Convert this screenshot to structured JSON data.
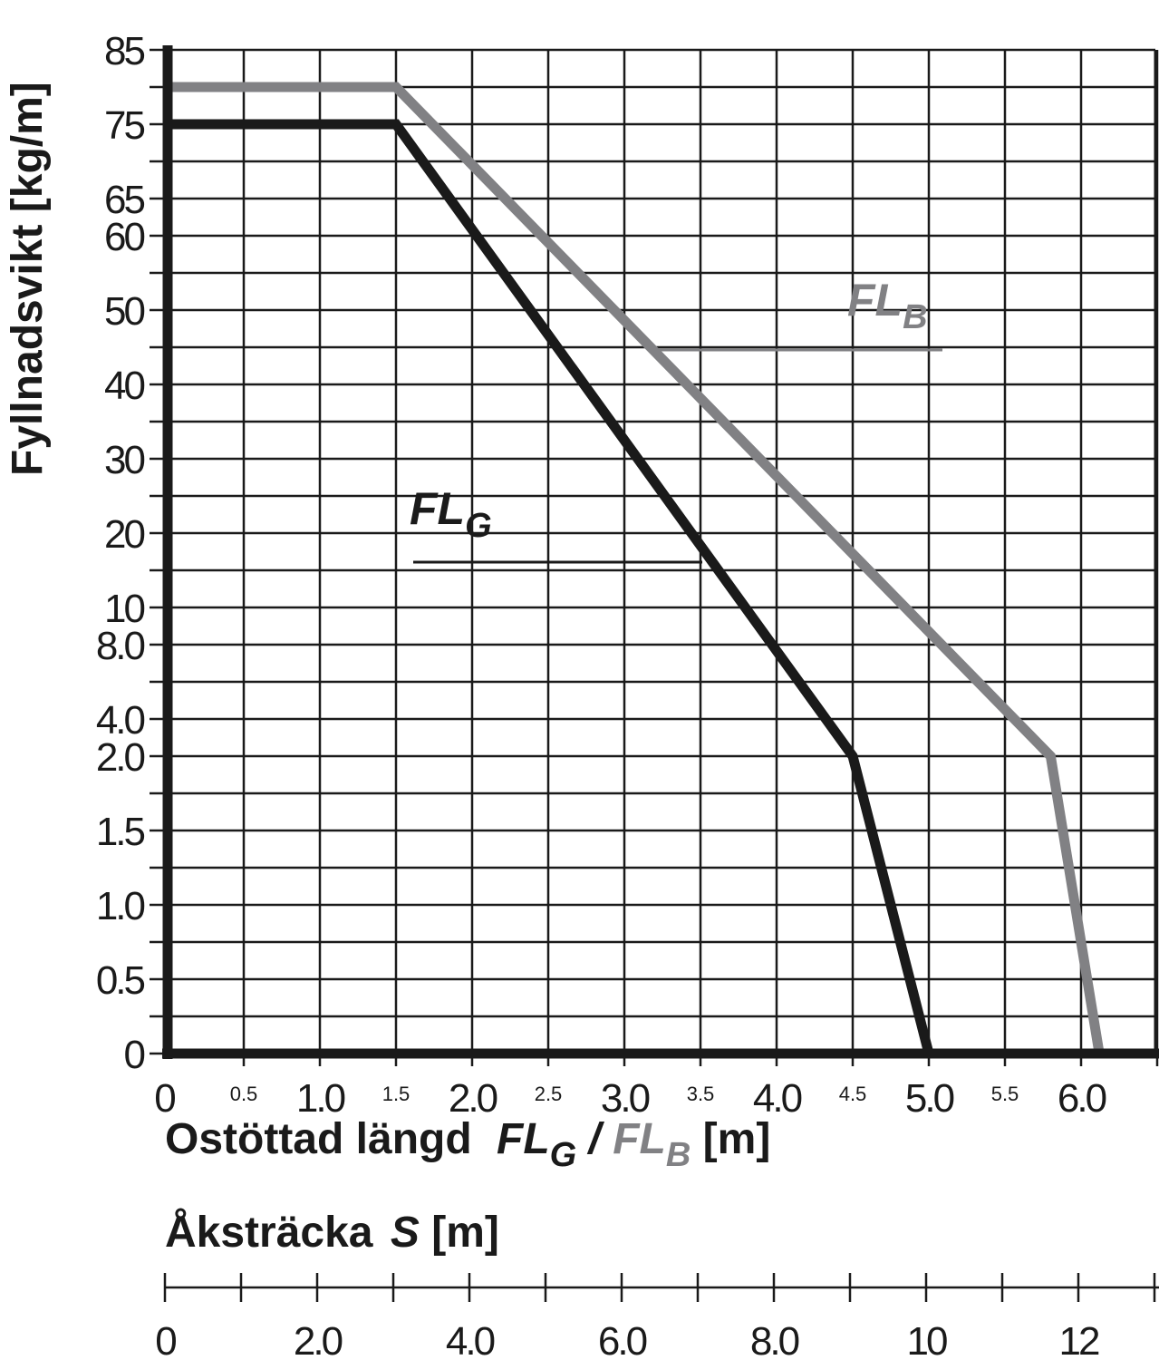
{
  "chart_data": {
    "type": "line",
    "ylabel": "Fyllnadsvikt [kg/m]",
    "xlabel": {
      "prefix": "Ostöttad längd",
      "series_g": "FL",
      "series_g_sub": "G",
      "sep": "/",
      "series_b": "FL",
      "series_b_sub": "B",
      "unit": "[m]"
    },
    "x2label": {
      "text": "Åksträcka",
      "var": "S",
      "unit": "[m]"
    },
    "xlim": [
      0,
      6.5
    ],
    "x_ticks_major": [
      "0",
      "1.0",
      "2.0",
      "3.0",
      "4.0",
      "5.0",
      "6.0"
    ],
    "x_ticks_minor": [
      "0.5",
      "1.5",
      "2.5",
      "3.5",
      "4.5",
      "5.5"
    ],
    "y_scale": "non-uniform (equal spacing between labeled ticks)",
    "y_ticks": [
      "0",
      "0.5",
      "1.0",
      "1.5",
      "2.0",
      "4.0",
      "8.0",
      "10",
      "20",
      "30",
      "40",
      "50",
      "60",
      "65",
      "75",
      "85"
    ],
    "x2_ticks": [
      "0",
      "2.0",
      "4.0",
      "6.0",
      "8.0",
      "10",
      "12"
    ],
    "x2lim": [
      0,
      13
    ],
    "grid": true,
    "series": [
      {
        "name": "FLG",
        "label_main": "FL",
        "label_sub": "G",
        "color": "#1a1a1a",
        "x": [
          0,
          1.5,
          4.5,
          5.0
        ],
        "y": [
          75,
          75,
          2.0,
          0
        ]
      },
      {
        "name": "FLB",
        "label_main": "FL",
        "label_sub": "B",
        "color": "#818184",
        "x": [
          0,
          1.5,
          5.8,
          6.12
        ],
        "y": [
          80,
          80,
          2.0,
          0
        ]
      }
    ]
  }
}
